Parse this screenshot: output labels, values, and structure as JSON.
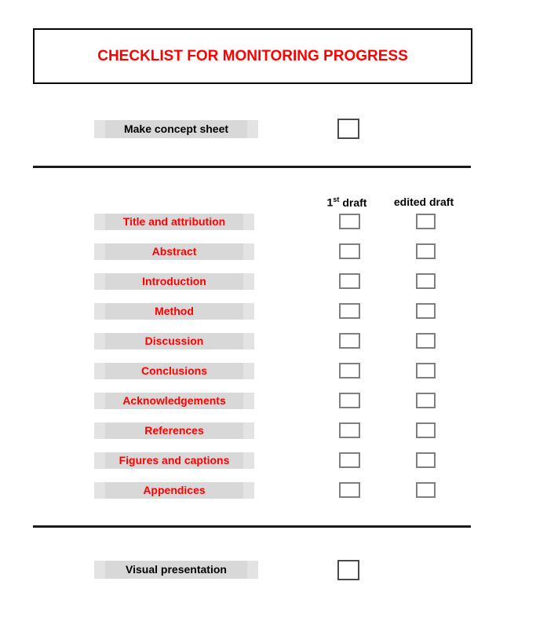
{
  "page_title": "CHECKLIST FOR MONITORING PROGRESS",
  "colors": {
    "title_red": "#FF0000",
    "item_red": "#FF0000",
    "bar_gray": "#D8D8D8",
    "bar_gray_edge": "#E3E3E3",
    "checkbox_border": "#7F7F7F",
    "checkbox_border_dark": "#4A4A4A",
    "divider": "#1A1A1A"
  },
  "top_section": {
    "label": "Make concept sheet",
    "checkbox_checked": false
  },
  "columns": {
    "first_draft": {
      "base": "1",
      "sup": "st",
      "rest": "draft"
    },
    "edited_draft": "edited draft"
  },
  "rows": [
    {
      "label": "Title and attribution",
      "first_draft_checked": false,
      "edited_draft_checked": false
    },
    {
      "label": "Abstract",
      "first_draft_checked": false,
      "edited_draft_checked": false
    },
    {
      "label": "Introduction",
      "first_draft_checked": false,
      "edited_draft_checked": false
    },
    {
      "label": "Method",
      "first_draft_checked": false,
      "edited_draft_checked": false
    },
    {
      "label": "Discussion",
      "first_draft_checked": false,
      "edited_draft_checked": false
    },
    {
      "label": "Conclusions",
      "first_draft_checked": false,
      "edited_draft_checked": false
    },
    {
      "label": "Acknowledgements",
      "first_draft_checked": false,
      "edited_draft_checked": false
    },
    {
      "label": "References",
      "first_draft_checked": false,
      "edited_draft_checked": false
    },
    {
      "label": "Figures and captions",
      "first_draft_checked": false,
      "edited_draft_checked": false
    },
    {
      "label": "Appendices",
      "first_draft_checked": false,
      "edited_draft_checked": false
    }
  ],
  "bottom_section": {
    "label": "Visual presentation",
    "checkbox_checked": false
  }
}
